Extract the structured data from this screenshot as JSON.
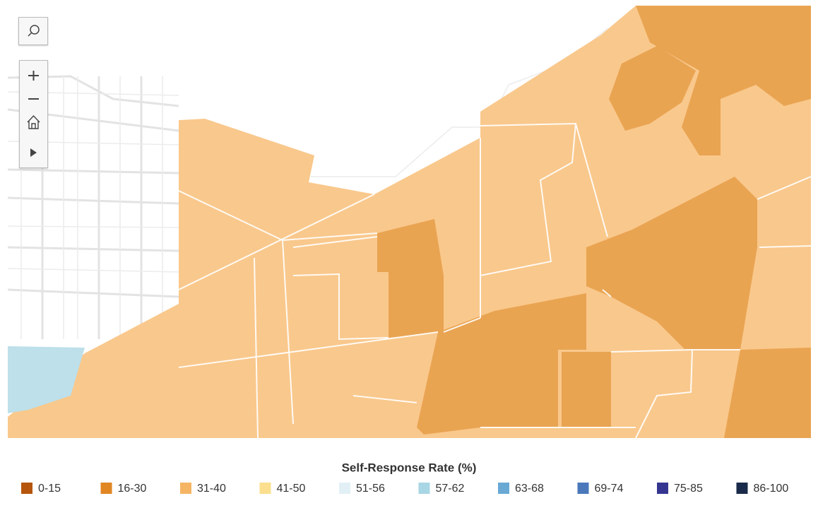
{
  "legend": {
    "title": "Self-Response Rate (%)",
    "items": [
      {
        "label": "0-15",
        "color": "#b5560c"
      },
      {
        "label": "16-30",
        "color": "#e08622"
      },
      {
        "label": "31-40",
        "color": "#f5b565"
      },
      {
        "label": "41-50",
        "color": "#fbdf8e"
      },
      {
        "label": "51-56",
        "color": "#e2f0f6"
      },
      {
        "label": "57-62",
        "color": "#a8d6e4"
      },
      {
        "label": "63-68",
        "color": "#6aa9d4"
      },
      {
        "label": "69-74",
        "color": "#4a78ba"
      },
      {
        "label": "75-85",
        "color": "#353591"
      },
      {
        "label": "86-100",
        "color": "#1a2a4a"
      }
    ]
  }
}
